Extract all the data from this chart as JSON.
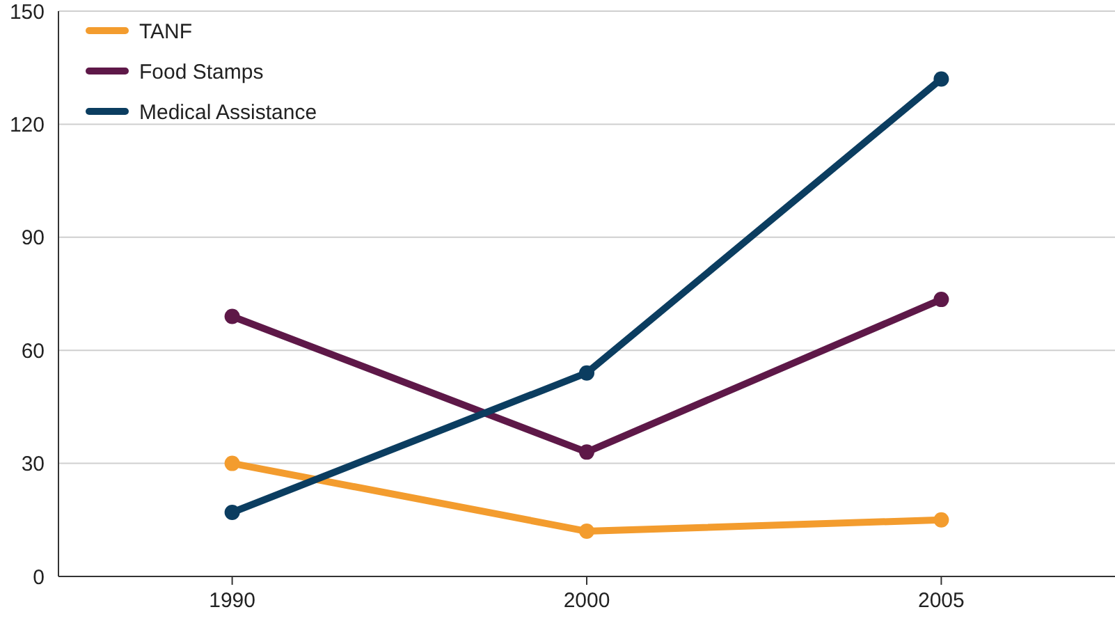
{
  "chart_data": {
    "type": "line",
    "categories": [
      "1990",
      "2000",
      "2005"
    ],
    "series": [
      {
        "name": "TANF",
        "color": "#f39c2e",
        "values": [
          30,
          12,
          15
        ]
      },
      {
        "name": "Food Stamps",
        "color": "#5e1848",
        "values": [
          69,
          33,
          73.5
        ]
      },
      {
        "name": "Medical Assistance",
        "color": "#0b3d60",
        "values": [
          17,
          54,
          132
        ]
      }
    ],
    "ylim": [
      0,
      150
    ],
    "yticks": [
      0,
      30,
      60,
      90,
      120,
      150
    ],
    "grid": "y",
    "legend": "top left",
    "marker": "circle",
    "line_style": "solid"
  }
}
